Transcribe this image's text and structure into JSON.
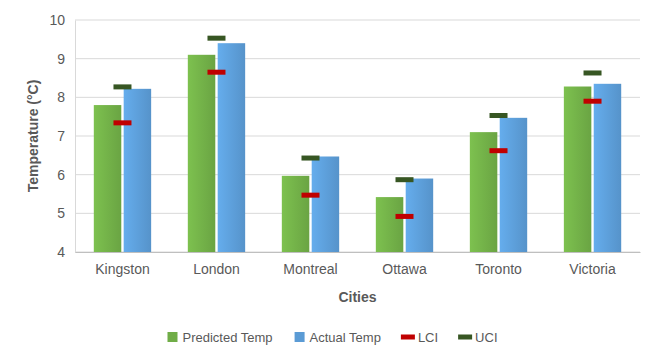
{
  "chart_data": {
    "type": "bar",
    "x_label": "Cities",
    "y_label": "Temperature (°C)",
    "categories": [
      "Kingston",
      "London",
      "Montreal",
      "Ottawa",
      "Toronto",
      "Victoria"
    ],
    "series": [
      {
        "name": "Predicted Temp",
        "type": "bar",
        "color": "#70ad47",
        "values": [
          7.8,
          9.1,
          5.97,
          5.42,
          7.1,
          8.28
        ]
      },
      {
        "name": "Actual Temp",
        "type": "bar",
        "color": "#5b9bd5",
        "values": [
          8.22,
          9.4,
          6.47,
          5.9,
          7.47,
          8.35
        ]
      },
      {
        "name": "LCI",
        "type": "scatter",
        "marker": "dash",
        "color": "#c00000",
        "values": [
          7.34,
          8.65,
          5.47,
          4.92,
          6.62,
          7.9
        ]
      },
      {
        "name": "UCI",
        "type": "scatter",
        "marker": "dash",
        "color": "#375623",
        "values": [
          8.27,
          9.53,
          6.43,
          5.87,
          7.53,
          8.63
        ]
      }
    ],
    "ylim": [
      4,
      10
    ],
    "yticks": [
      4,
      5,
      6,
      7,
      8,
      9,
      10
    ],
    "grid": true,
    "legend": "bottom"
  }
}
